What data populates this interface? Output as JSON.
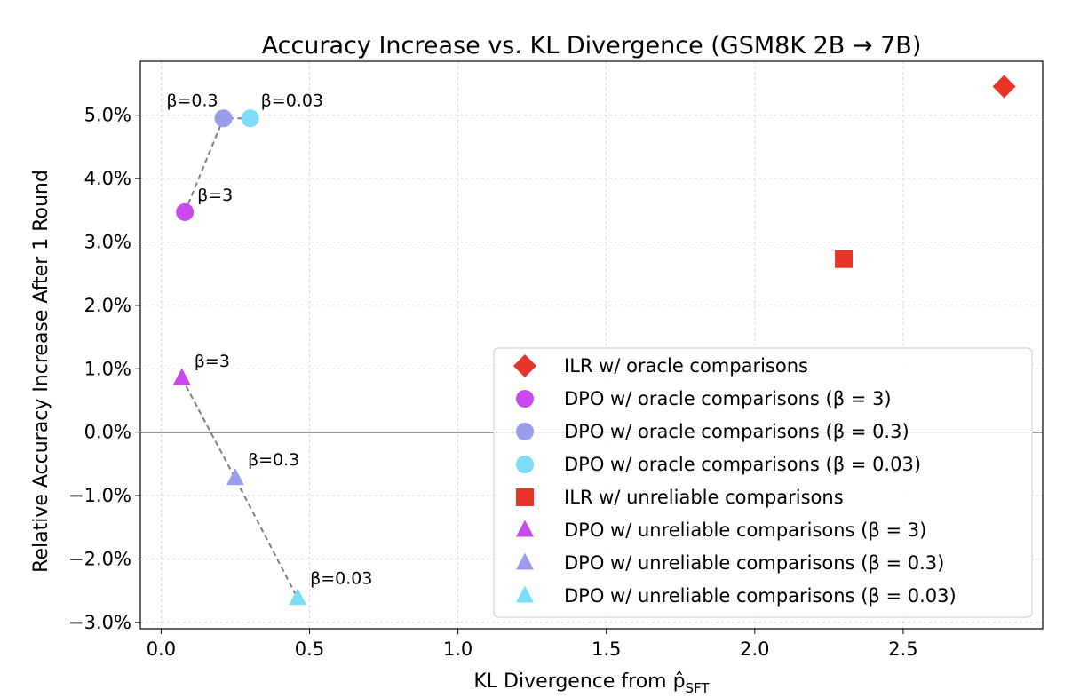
{
  "chart_data": {
    "type": "scatter",
    "title": "Accuracy Increase vs. KL Divergence (GSM8K 2B → 7B)",
    "xlabel": "KL Divergence from p̂",
    "xlabel_sub": "SFT",
    "ylabel": "Relative Accuracy Increase After 1 Round",
    "xlim": [
      -0.07,
      2.97
    ],
    "ylim": [
      -3.1,
      5.85
    ],
    "xticks": [
      0.0,
      0.5,
      1.0,
      1.5,
      2.0,
      2.5
    ],
    "xtick_labels": [
      "0.0",
      "0.5",
      "1.0",
      "1.5",
      "2.0",
      "2.5"
    ],
    "yticks": [
      -3,
      -2,
      -1,
      0,
      1,
      2,
      3,
      4,
      5
    ],
    "ytick_labels": [
      "−3.0%",
      "−2.0%",
      "−1.0%",
      "0.0%",
      "1.0%",
      "2.0%",
      "3.0%",
      "4.0%",
      "5.0%"
    ],
    "grid": true,
    "zero_line": true,
    "legend_position": "lower-right",
    "series": [
      {
        "name": "ILR w/ oracle comparisons",
        "marker": "diamond",
        "color": "#e8352a",
        "points": [
          {
            "x": 2.84,
            "y": 5.45
          }
        ]
      },
      {
        "name": "DPO w/ oracle comparisons (β = 3)",
        "marker": "circle",
        "color": "#c84aee",
        "points": [
          {
            "x": 0.08,
            "y": 3.47
          }
        ],
        "annotation": "β=3"
      },
      {
        "name": "DPO w/ oracle comparisons (β = 0.3)",
        "marker": "circle",
        "color": "#9a9cee",
        "points": [
          {
            "x": 0.21,
            "y": 4.95
          }
        ],
        "annotation": "β=0.3"
      },
      {
        "name": "DPO w/ oracle comparisons (β = 0.03)",
        "marker": "circle",
        "color": "#7ddcf7",
        "points": [
          {
            "x": 0.3,
            "y": 4.95
          }
        ],
        "annotation": "β=0.03"
      },
      {
        "name": "ILR w/ unreliable comparisons",
        "marker": "square",
        "color": "#e8352a",
        "points": [
          {
            "x": 2.3,
            "y": 2.73
          }
        ]
      },
      {
        "name": "DPO w/ unreliable comparisons (β = 3)",
        "marker": "triangle",
        "color": "#c84aee",
        "points": [
          {
            "x": 0.07,
            "y": 0.85
          }
        ],
        "annotation": "β=3"
      },
      {
        "name": "DPO w/ unreliable comparisons (β = 0.3)",
        "marker": "triangle",
        "color": "#9a9cee",
        "points": [
          {
            "x": 0.25,
            "y": -0.73
          }
        ],
        "annotation": "β=0.3"
      },
      {
        "name": "DPO w/ unreliable comparisons (β = 0.03)",
        "marker": "triangle",
        "color": "#7ddcf7",
        "points": [
          {
            "x": 0.46,
            "y": -2.62
          }
        ],
        "annotation": "β=0.03"
      }
    ],
    "connector_lines": [
      {
        "color": "#808080",
        "points": [
          {
            "x": 0.08,
            "y": 3.47
          },
          {
            "x": 0.21,
            "y": 4.95
          },
          {
            "x": 0.3,
            "y": 4.95
          }
        ]
      },
      {
        "color": "#808080",
        "points": [
          {
            "x": 0.07,
            "y": 0.85
          },
          {
            "x": 0.25,
            "y": -0.73
          },
          {
            "x": 0.46,
            "y": -2.62
          }
        ]
      }
    ]
  }
}
